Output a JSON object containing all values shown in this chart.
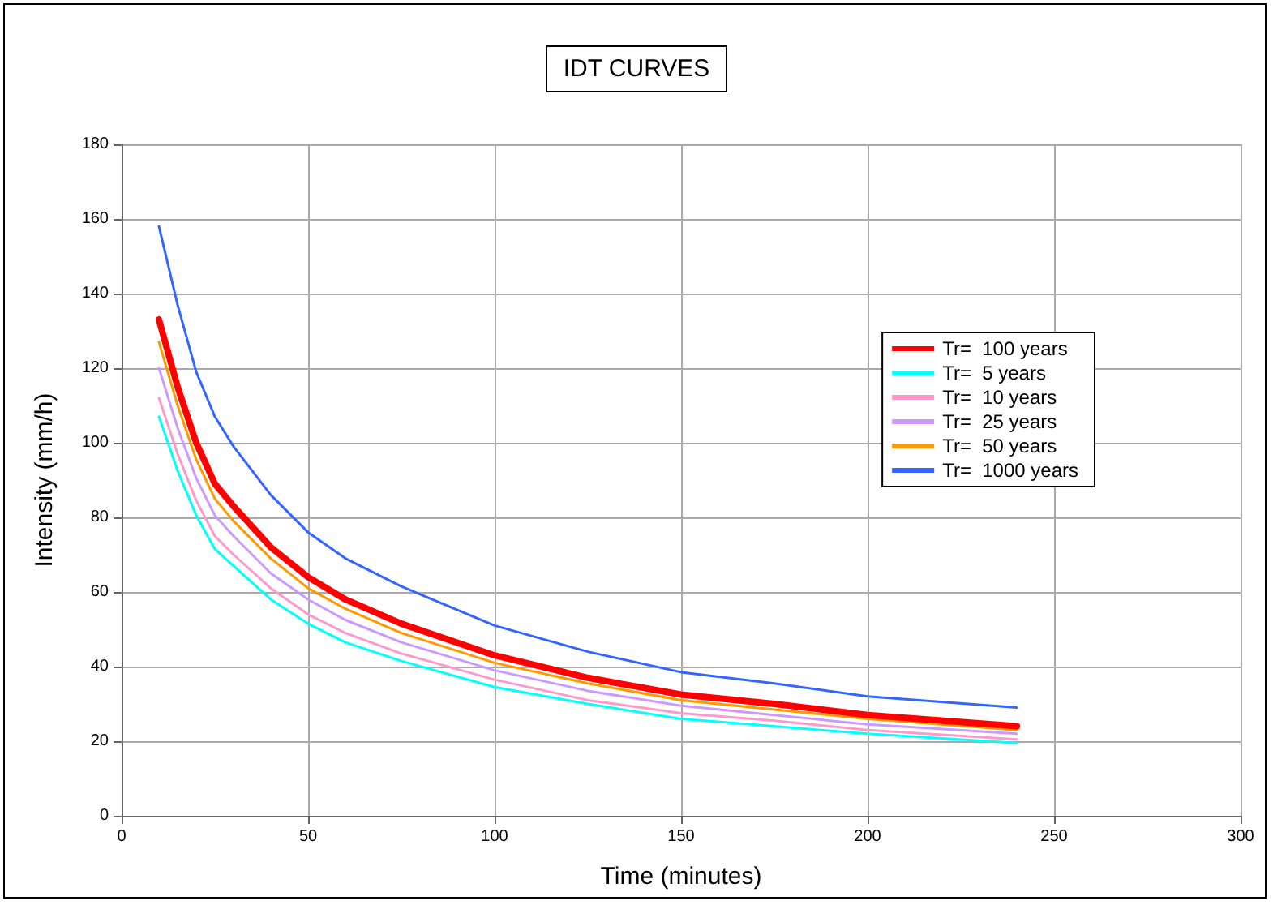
{
  "chart_data": {
    "type": "line",
    "title": "IDT CURVES",
    "xlabel": "Time (minutes)",
    "ylabel": "Intensity (mm/h)",
    "x": [
      10,
      15,
      20,
      25,
      30,
      40,
      50,
      60,
      75,
      100,
      125,
      150,
      175,
      200,
      240
    ],
    "series": [
      {
        "name": "Tr=  100 years",
        "color": "#ff0000",
        "values": [
          133,
          115,
          100,
          89,
          83,
          72,
          64,
          58,
          51.5,
          43,
          37,
          32.5,
          30,
          27,
          24
        ]
      },
      {
        "name": "Tr=  5 years",
        "color": "#00ffff",
        "values": [
          107,
          92.5,
          80.5,
          71.5,
          67,
          58,
          51.5,
          46.5,
          41.5,
          34.5,
          30,
          26,
          24,
          22,
          19.5
        ]
      },
      {
        "name": "Tr=  10 years",
        "color": "#ff99cc",
        "values": [
          112,
          97,
          84.5,
          75,
          70,
          61,
          54,
          49,
          43.5,
          36.5,
          31,
          27.5,
          25.5,
          23,
          20.5
        ]
      },
      {
        "name": "Tr=  25 years",
        "color": "#cc99ff",
        "values": [
          120,
          104,
          90.5,
          80.5,
          75,
          65,
          58,
          52.5,
          46.5,
          39,
          33.5,
          29.5,
          27,
          24.5,
          22
        ]
      },
      {
        "name": "Tr=  50 years",
        "color": "#ff9900",
        "values": [
          127,
          110,
          95.5,
          85,
          79,
          69,
          61,
          55.5,
          49,
          41,
          35.5,
          31,
          28.5,
          26,
          23
        ]
      },
      {
        "name": "Tr=  1000 years",
        "color": "#3366ff",
        "values": [
          158,
          137,
          119,
          107,
          99,
          86,
          76,
          69,
          61.5,
          51,
          44,
          38.5,
          35.5,
          32,
          29
        ]
      }
    ],
    "xlim": [
      0,
      300
    ],
    "xticks": [
      0,
      50,
      100,
      150,
      200,
      250,
      300
    ],
    "ylim": [
      0,
      180
    ],
    "yticks": [
      0,
      20,
      40,
      60,
      80,
      100,
      120,
      140,
      160,
      180
    ],
    "grid": true,
    "legend": "right",
    "marker": "none",
    "line_style": "solid"
  }
}
